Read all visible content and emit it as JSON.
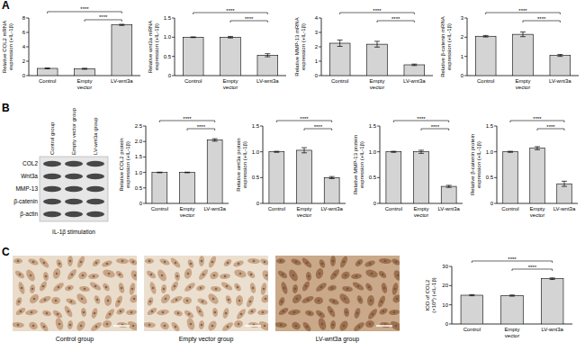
{
  "panel_labels": [
    "A",
    "B",
    "C"
  ],
  "chart_data": [
    {
      "type": "bar",
      "y_label": "Relative COL2 mRNA expression (+IL-1β)",
      "categories": [
        "Control",
        "Empty vector",
        "LV-wnt3a"
      ],
      "values": [
        1.0,
        0.95,
        7.05
      ],
      "errors": [
        0.06,
        0.07,
        0.08
      ],
      "color": "#d4d4d4",
      "ylim": [
        0,
        8
      ],
      "yticks": [
        0,
        2,
        4,
        6,
        8
      ],
      "annotations": [
        {
          "text": "****",
          "between": [
            "Control",
            "LV-wnt3a"
          ]
        },
        {
          "text": "****",
          "between": [
            "Empty vector",
            "LV-wnt3a"
          ]
        }
      ]
    },
    {
      "type": "bar",
      "y_label": "Relative wnt3a mRNA expression (+IL-1β)",
      "categories": [
        "Control",
        "Empty vector",
        "LV-wnt3a"
      ],
      "values": [
        1.0,
        1.0,
        0.53
      ],
      "errors": [
        0.01,
        0.02,
        0.04
      ],
      "color": "#d4d4d4",
      "ylim": [
        0,
        1.5
      ],
      "yticks": [
        0,
        0.5,
        {
          "value": 1,
          "label": "1.0"
        },
        1.5
      ],
      "annotations": [
        {
          "text": "****",
          "between": [
            "Control",
            "LV-wnt3a"
          ]
        },
        {
          "text": "****",
          "between": [
            "Empty vector",
            "LV-wnt3a"
          ]
        }
      ]
    },
    {
      "type": "bar",
      "y_label": "Relative MMP-13 mRNA expression (+IL-1β)",
      "categories": [
        "Control",
        "Empty vector",
        "LV-wnt3a"
      ],
      "values": [
        2.25,
        2.18,
        0.75
      ],
      "errors": [
        0.22,
        0.2,
        0.05
      ],
      "color": "#d4d4d4",
      "ylim": [
        0,
        4
      ],
      "yticks": [
        0,
        1,
        2,
        3,
        4
      ],
      "annotations": [
        {
          "text": "****",
          "between": [
            "Control",
            "LV-wnt3a"
          ]
        },
        {
          "text": "****",
          "between": [
            "Empty vector",
            "LV-wnt3a"
          ]
        }
      ]
    },
    {
      "type": "bar",
      "y_label": "Relative β-catenin mRNA expression (+IL-1β)",
      "categories": [
        "Control",
        "Empty vector",
        "LV-wnt3a"
      ],
      "values": [
        2.05,
        2.15,
        1.05
      ],
      "errors": [
        0.04,
        0.12,
        0.05
      ],
      "color": "#d4d4d4",
      "ylim": [
        0,
        3
      ],
      "yticks": [
        0,
        1,
        2,
        3
      ],
      "annotations": [
        {
          "text": "****",
          "between": [
            "Control",
            "LV-wnt3a"
          ]
        },
        {
          "text": "****",
          "between": [
            "Empty vector",
            "LV-wnt3a"
          ]
        }
      ]
    },
    {
      "type": "bar",
      "y_label": "Relative COL2 protein expression (+IL-1β)",
      "categories": [
        "Control",
        "Empty vector",
        "LV-wnt3a"
      ],
      "values": [
        1.0,
        1.0,
        2.05
      ],
      "errors": [
        0.01,
        0.01,
        0.04
      ],
      "color": "#d4d4d4",
      "ylim": [
        0,
        2.5
      ],
      "yticks": [
        0,
        0.5,
        {
          "value": 1,
          "label": "1.0"
        },
        1.5,
        {
          "value": 2,
          "label": "2.0"
        },
        2.5
      ],
      "annotations": [
        {
          "text": "****",
          "between": [
            "Control",
            "LV-wnt3a"
          ]
        },
        {
          "text": "****",
          "between": [
            "Empty vector",
            "LV-wnt3a"
          ]
        }
      ]
    },
    {
      "type": "bar",
      "y_label": "Relative wnt3a protein expression (+IL-1β)",
      "categories": [
        "Control",
        "Empty vector",
        "LV-wnt3a"
      ],
      "values": [
        1.0,
        1.03,
        0.5
      ],
      "errors": [
        0.01,
        0.05,
        0.02
      ],
      "color": "#d4d4d4",
      "ylim": [
        0,
        1.5
      ],
      "yticks": [
        0,
        0.5,
        {
          "value": 1,
          "label": "1.0"
        },
        1.5
      ],
      "annotations": [
        {
          "text": "****",
          "between": [
            "Control",
            "LV-wnt3a"
          ]
        },
        {
          "text": "****",
          "between": [
            "Empty vector",
            "LV-wnt3a"
          ]
        }
      ]
    },
    {
      "type": "bar",
      "y_label": "Relative MMP-13 protein expression (+IL-1β)",
      "categories": [
        "Control",
        "Empty vector",
        "LV-wnt3a"
      ],
      "values": [
        1.0,
        1.0,
        0.33
      ],
      "errors": [
        0.01,
        0.03,
        0.02
      ],
      "color": "#d4d4d4",
      "ylim": [
        0,
        1.5
      ],
      "yticks": [
        0,
        0.5,
        {
          "value": 1,
          "label": "1.0"
        },
        1.5
      ],
      "annotations": [
        {
          "text": "****",
          "between": [
            "Control",
            "LV-wnt3a"
          ]
        },
        {
          "text": "****",
          "between": [
            "Empty vector",
            "LV-wnt3a"
          ]
        }
      ]
    },
    {
      "type": "bar",
      "y_label": "Relative β-catenin protein expression (+IL-1β)",
      "categories": [
        "Control",
        "Empty vector",
        "LV-wnt3a"
      ],
      "values": [
        1.0,
        1.07,
        0.38
      ],
      "errors": [
        0.01,
        0.03,
        0.05
      ],
      "color": "#d4d4d4",
      "ylim": [
        0,
        1.5
      ],
      "yticks": [
        0,
        0.5,
        {
          "value": 1,
          "label": "1.0"
        },
        1.5
      ],
      "annotations": [
        {
          "text": "****",
          "between": [
            "Control",
            "LV-wnt3a"
          ]
        },
        {
          "text": "****",
          "between": [
            "Empty vector",
            "LV-wnt3a"
          ]
        }
      ]
    },
    {
      "type": "bar",
      "y_label": "IOD of COL2 (×10⁴) (+IL-1β)",
      "categories": [
        "Control",
        "Empty vector",
        "LV-wnt3a"
      ],
      "values": [
        15.0,
        14.8,
        23.6
      ],
      "errors": [
        0.3,
        0.3,
        0.4
      ],
      "color": "#d4d4d4",
      "ylim": [
        0,
        30
      ],
      "yticks": [
        0,
        10,
        20,
        30
      ],
      "annotations": [
        {
          "text": "****",
          "between": [
            "Control",
            "LV-wnt3a"
          ]
        },
        {
          "text": "****",
          "between": [
            "Empty vector",
            "LV-wnt3a"
          ]
        }
      ]
    }
  ],
  "blot": {
    "columns": [
      "Control group",
      "Empty vector group",
      "LV-wnt3a group"
    ],
    "rows": [
      "COL2",
      "Wnt3a",
      "MMP-13",
      "β-catenin",
      "β-actin"
    ],
    "caption": "IL-1β stimulation"
  },
  "images": {
    "captions": [
      "Control group",
      "Empty vector group",
      "LV-wnt3a group"
    ]
  }
}
